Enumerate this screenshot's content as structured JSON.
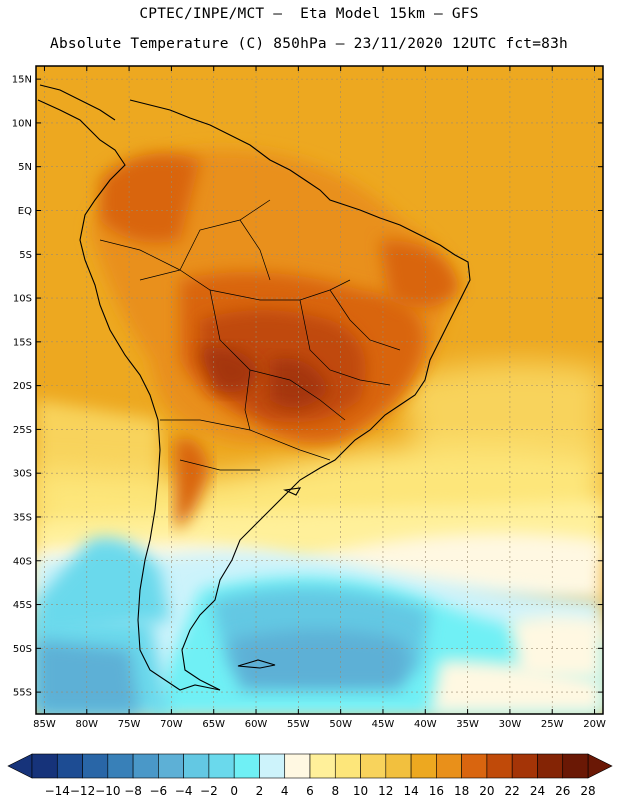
{
  "header": {
    "line1": "CPTEC/INPE/MCT –  Eta Model 15km – GFS",
    "line2": "Absolute Temperature (C) 850hPa – 23/11/2020 12UTC fct=83h"
  },
  "map": {
    "lon_range": [
      -86,
      -19
    ],
    "lat_range": [
      -57.5,
      16.5
    ],
    "lat_ticks": [
      "15N",
      "10N",
      "5N",
      "EQ",
      "5S",
      "10S",
      "15S",
      "20S",
      "25S",
      "30S",
      "35S",
      "40S",
      "45S",
      "50S",
      "55S"
    ],
    "lon_ticks": [
      "85W",
      "80W",
      "75W",
      "70W",
      "65W",
      "60W",
      "55W",
      "50W",
      "45W",
      "40W",
      "35W",
      "30W",
      "25W",
      "20W"
    ]
  },
  "colorbar": {
    "labels": [
      "-14",
      "-12",
      "-10",
      "-8",
      "-6",
      "-4",
      "-2",
      "0",
      "2",
      "4",
      "6",
      "8",
      "10",
      "12",
      "14",
      "16",
      "18",
      "20",
      "22",
      "24",
      "26",
      "28"
    ],
    "colors": [
      "#16337a",
      "#1d4c93",
      "#2966a7",
      "#3880b8",
      "#4a98c8",
      "#5db0d6",
      "#63c8e3",
      "#6ad9ec",
      "#6ff0f5",
      "#cdf3fb",
      "#fff8e2",
      "#fff09a",
      "#fde67a",
      "#f8d35c",
      "#f2c03e",
      "#eda820",
      "#e9901a",
      "#d9650f",
      "#c04a09",
      "#a43407",
      "#842405",
      "#6a1805"
    ],
    "over_color": "#6a1805",
    "under_color": "#16337a"
  }
}
